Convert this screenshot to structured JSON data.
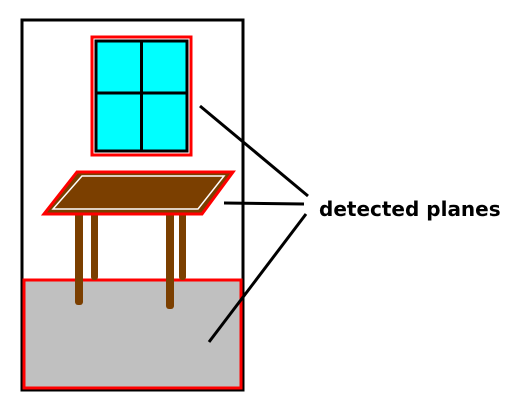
{
  "annotation": {
    "label": "detected planes"
  },
  "colors": {
    "room_outline": "#000000",
    "plane_highlight": "#ff0000",
    "window_glass": "#00ffff",
    "window_frame": "#000000",
    "table_wood": "#7b3f00",
    "table_inner_outline": "#ffffff",
    "floor": "#c0c0c0",
    "background": "#ffffff",
    "pointer_lines": "#000000"
  },
  "objects": [
    {
      "name": "window",
      "icon": "window-icon"
    },
    {
      "name": "table",
      "icon": "table-icon"
    },
    {
      "name": "floor",
      "icon": "floor-plane"
    }
  ]
}
